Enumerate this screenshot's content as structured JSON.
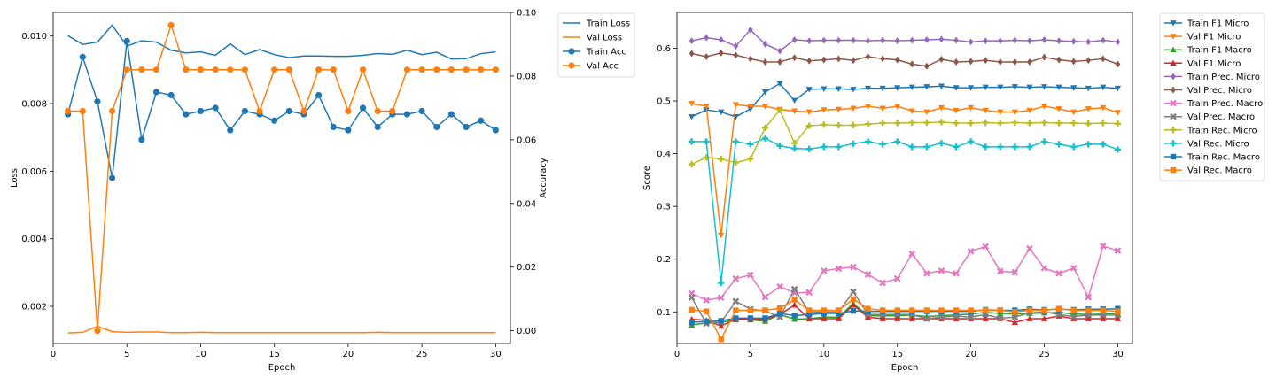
{
  "chart_data": [
    {
      "type": "line",
      "title": "",
      "xlabel": "Epoch",
      "ylabel": "Loss",
      "y2label": "Accuracy",
      "xlim": [
        0,
        31
      ],
      "ylim": [
        0.0009,
        0.0107
      ],
      "y2lim": [
        -0.004,
        0.1
      ],
      "xticks": [
        "0",
        "5",
        "10",
        "15",
        "20",
        "25",
        "30"
      ],
      "yticks": [
        "0.002",
        "0.004",
        "0.006",
        "0.008",
        "0.010"
      ],
      "y2ticks": [
        "0.00",
        "0.02",
        "0.04",
        "0.06",
        "0.08",
        "0.10"
      ],
      "legend_position": "outside-right",
      "x": [
        1,
        2,
        3,
        4,
        5,
        6,
        7,
        8,
        9,
        10,
        11,
        12,
        13,
        14,
        15,
        16,
        17,
        18,
        19,
        20,
        21,
        22,
        23,
        24,
        25,
        26,
        27,
        28,
        29,
        30
      ],
      "series": [
        {
          "name": "Train Loss",
          "axis": "left",
          "color": "#1f77b4",
          "marker": "none",
          "values": [
            0.01001,
            0.00975,
            0.00982,
            0.01032,
            0.0097,
            0.00986,
            0.00982,
            0.00958,
            0.0095,
            0.00953,
            0.00943,
            0.00977,
            0.00945,
            0.0096,
            0.00945,
            0.00936,
            0.00941,
            0.00941,
            0.0094,
            0.0094,
            0.00943,
            0.00948,
            0.00946,
            0.00958,
            0.00945,
            0.00952,
            0.00932,
            0.00933,
            0.00948,
            0.00953
          ]
        },
        {
          "name": "Val Loss",
          "axis": "left",
          "color": "#ff7f0e",
          "marker": "none",
          "values": [
            0.00121,
            0.00123,
            0.00141,
            0.00125,
            0.00123,
            0.00124,
            0.00124,
            0.00122,
            0.00122,
            0.00123,
            0.00122,
            0.00122,
            0.00122,
            0.00122,
            0.00122,
            0.00122,
            0.00122,
            0.00122,
            0.00122,
            0.00122,
            0.00122,
            0.00123,
            0.00122,
            0.00122,
            0.00122,
            0.00122,
            0.00122,
            0.00122,
            0.00122,
            0.00122
          ]
        },
        {
          "name": "Train Acc",
          "axis": "right",
          "color": "#1f77b4",
          "marker": "circle",
          "values": [
            0.068,
            0.086,
            0.072,
            0.048,
            0.091,
            0.06,
            0.075,
            0.074,
            0.068,
            0.069,
            0.07,
            0.063,
            0.069,
            0.068,
            0.066,
            0.069,
            0.068,
            0.074,
            0.064,
            0.063,
            0.07,
            0.064,
            0.068,
            0.068,
            0.069,
            0.064,
            0.068,
            0.064,
            0.066,
            0.063
          ]
        },
        {
          "name": "Val Acc",
          "axis": "right",
          "color": "#ff7f0e",
          "marker": "circle",
          "values": [
            0.069,
            0.069,
            0.0,
            0.069,
            0.082,
            0.082,
            0.082,
            0.096,
            0.082,
            0.082,
            0.082,
            0.082,
            0.082,
            0.069,
            0.082,
            0.082,
            0.069,
            0.082,
            0.082,
            0.069,
            0.082,
            0.069,
            0.069,
            0.082,
            0.082,
            0.082,
            0.082,
            0.082,
            0.082,
            0.082
          ]
        }
      ]
    },
    {
      "type": "line",
      "title": "",
      "xlabel": "Epoch",
      "ylabel": "Score",
      "xlim": [
        0,
        31
      ],
      "ylim": [
        0.04,
        0.668
      ],
      "xticks": [
        "0",
        "5",
        "10",
        "15",
        "20",
        "25",
        "30"
      ],
      "yticks": [
        "0.1",
        "0.2",
        "0.3",
        "0.4",
        "0.5",
        "0.6"
      ],
      "legend_position": "outside-right",
      "x": [
        1,
        2,
        3,
        4,
        5,
        6,
        7,
        8,
        9,
        10,
        11,
        12,
        13,
        14,
        15,
        16,
        17,
        18,
        19,
        20,
        21,
        22,
        23,
        24,
        25,
        26,
        27,
        28,
        29,
        30
      ],
      "series": [
        {
          "name": "Train F1 Micro",
          "color": "#1f77b4",
          "marker": "triangle-down",
          "values": [
            0.47,
            0.483,
            0.479,
            0.47,
            0.485,
            0.517,
            0.533,
            0.501,
            0.522,
            0.523,
            0.523,
            0.522,
            0.524,
            0.524,
            0.525,
            0.526,
            0.527,
            0.528,
            0.525,
            0.525,
            0.526,
            0.526,
            0.527,
            0.526,
            0.527,
            0.526,
            0.525,
            0.524,
            0.526,
            0.524
          ]
        },
        {
          "name": "Val F1 Micro",
          "color": "#ff7f0e",
          "marker": "triangle-down",
          "values": [
            0.495,
            0.49,
            0.245,
            0.493,
            0.49,
            0.49,
            0.484,
            0.481,
            0.479,
            0.483,
            0.484,
            0.486,
            0.49,
            0.486,
            0.49,
            0.481,
            0.479,
            0.487,
            0.482,
            0.487,
            0.482,
            0.479,
            0.479,
            0.482,
            0.49,
            0.485,
            0.479,
            0.485,
            0.487,
            0.478
          ]
        },
        {
          "name": "Train F1 Macro",
          "color": "#2ca02c",
          "marker": "triangle-up",
          "values": [
            0.075,
            0.079,
            0.08,
            0.085,
            0.085,
            0.082,
            0.095,
            0.086,
            0.087,
            0.09,
            0.09,
            0.116,
            0.093,
            0.092,
            0.093,
            0.094,
            0.091,
            0.093,
            0.094,
            0.096,
            0.099,
            0.097,
            0.096,
            0.097,
            0.098,
            0.099,
            0.096,
            0.095,
            0.096,
            0.097
          ]
        },
        {
          "name": "Val F1 Micro",
          "color": "#d62728",
          "marker": "triangle-up",
          "values": [
            0.086,
            0.084,
            0.073,
            0.086,
            0.086,
            0.086,
            0.095,
            0.113,
            0.087,
            0.087,
            0.087,
            0.113,
            0.09,
            0.087,
            0.087,
            0.087,
            0.087,
            0.087,
            0.087,
            0.087,
            0.087,
            0.087,
            0.08,
            0.087,
            0.087,
            0.092,
            0.087,
            0.087,
            0.087,
            0.087
          ]
        },
        {
          "name": "Train Prec. Micro",
          "color": "#9467bd",
          "marker": "diamond",
          "values": [
            0.614,
            0.62,
            0.616,
            0.604,
            0.635,
            0.608,
            0.595,
            0.616,
            0.614,
            0.615,
            0.615,
            0.615,
            0.614,
            0.615,
            0.614,
            0.615,
            0.616,
            0.617,
            0.615,
            0.612,
            0.614,
            0.614,
            0.615,
            0.614,
            0.616,
            0.614,
            0.613,
            0.612,
            0.615,
            0.612
          ]
        },
        {
          "name": "Val Prec. Micro",
          "color": "#8c564b",
          "marker": "diamond",
          "values": [
            0.59,
            0.584,
            0.591,
            0.587,
            0.58,
            0.574,
            0.574,
            0.582,
            0.576,
            0.578,
            0.58,
            0.577,
            0.584,
            0.58,
            0.578,
            0.57,
            0.566,
            0.579,
            0.574,
            0.575,
            0.577,
            0.574,
            0.574,
            0.574,
            0.583,
            0.578,
            0.575,
            0.577,
            0.58,
            0.57
          ]
        },
        {
          "name": "Train Prec. Macro",
          "color": "#e377c2",
          "marker": "x",
          "values": [
            0.135,
            0.122,
            0.127,
            0.163,
            0.17,
            0.128,
            0.148,
            0.136,
            0.137,
            0.178,
            0.182,
            0.185,
            0.171,
            0.155,
            0.163,
            0.21,
            0.173,
            0.178,
            0.173,
            0.215,
            0.224,
            0.177,
            0.175,
            0.22,
            0.183,
            0.173,
            0.183,
            0.128,
            0.225,
            0.216
          ]
        },
        {
          "name": "Val Prec. Macro",
          "color": "#7f7f7f",
          "marker": "x",
          "values": [
            0.127,
            0.078,
            0.08,
            0.12,
            0.105,
            0.102,
            0.09,
            0.143,
            0.1,
            0.1,
            0.1,
            0.138,
            0.095,
            0.095,
            0.095,
            0.095,
            0.087,
            0.09,
            0.092,
            0.09,
            0.095,
            0.088,
            0.09,
            0.098,
            0.1,
            0.095,
            0.091,
            0.094,
            0.094,
            0.094
          ]
        },
        {
          "name": "Train Rec. Micro",
          "color": "#bcbd22",
          "marker": "plus",
          "values": [
            0.38,
            0.393,
            0.39,
            0.383,
            0.39,
            0.449,
            0.483,
            0.42,
            0.453,
            0.455,
            0.454,
            0.454,
            0.456,
            0.458,
            0.458,
            0.459,
            0.459,
            0.46,
            0.458,
            0.458,
            0.459,
            0.458,
            0.459,
            0.458,
            0.459,
            0.458,
            0.458,
            0.457,
            0.458,
            0.457
          ]
        },
        {
          "name": "Val Rec. Micro",
          "color": "#17becf",
          "marker": "plus",
          "values": [
            0.423,
            0.423,
            0.155,
            0.423,
            0.418,
            0.429,
            0.415,
            0.41,
            0.409,
            0.413,
            0.413,
            0.419,
            0.423,
            0.418,
            0.423,
            0.413,
            0.413,
            0.42,
            0.413,
            0.423,
            0.413,
            0.413,
            0.413,
            0.413,
            0.423,
            0.418,
            0.413,
            0.418,
            0.418,
            0.408
          ]
        },
        {
          "name": "Train Rec. Macro",
          "color": "#1f77b4",
          "marker": "square",
          "values": [
            0.08,
            0.082,
            0.083,
            0.088,
            0.088,
            0.088,
            0.097,
            0.093,
            0.095,
            0.097,
            0.097,
            0.102,
            0.101,
            0.101,
            0.101,
            0.101,
            0.101,
            0.101,
            0.101,
            0.101,
            0.104,
            0.103,
            0.103,
            0.105,
            0.104,
            0.105,
            0.104,
            0.105,
            0.105,
            0.106
          ]
        },
        {
          "name": "Val Rec. Macro",
          "color": "#ff7f0e",
          "marker": "square",
          "values": [
            0.104,
            0.101,
            0.048,
            0.103,
            0.103,
            0.103,
            0.107,
            0.123,
            0.103,
            0.103,
            0.103,
            0.124,
            0.106,
            0.103,
            0.103,
            0.103,
            0.103,
            0.103,
            0.103,
            0.103,
            0.103,
            0.103,
            0.1,
            0.103,
            0.103,
            0.106,
            0.103,
            0.103,
            0.103,
            0.101
          ]
        }
      ]
    }
  ]
}
